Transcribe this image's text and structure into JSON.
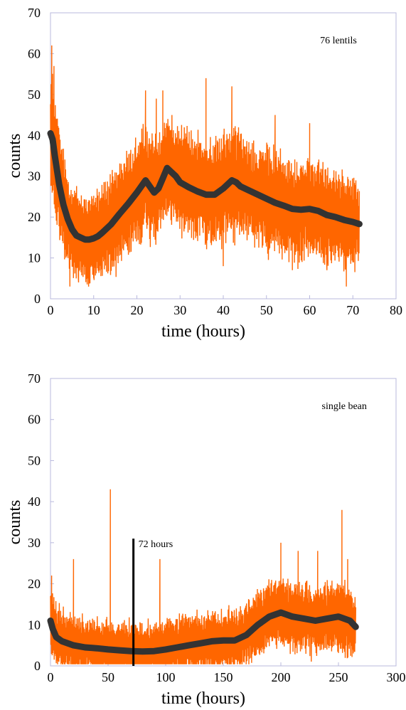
{
  "colors": {
    "raw": "#ff6600",
    "smooth": "#333333",
    "frame": "#b8b8de",
    "marker": "#000000"
  },
  "chart_data": [
    {
      "type": "line",
      "annotation": "76 lentils",
      "xlabel": "time (hours)",
      "ylabel": "counts",
      "xlim": [
        0,
        80
      ],
      "ylim": [
        0,
        70
      ],
      "xticks": [
        0,
        10,
        20,
        30,
        40,
        50,
        60,
        70,
        80
      ],
      "yticks": [
        0,
        10,
        20,
        30,
        40,
        50,
        60,
        70
      ],
      "grid": false,
      "series": [
        {
          "role": "raw",
          "x_range": [
            0,
            71.5
          ],
          "noise_halfwidth": 9,
          "peaks": [
            [
              0.3,
              62
            ],
            [
              0.8,
              57
            ],
            [
              1.5,
              44
            ],
            [
              22,
              51
            ],
            [
              24.5,
              49
            ],
            [
              26,
              51
            ],
            [
              36,
              54
            ],
            [
              42,
              52
            ],
            [
              52,
              45
            ],
            [
              60,
              43
            ]
          ],
          "dips": [
            [
              4.5,
              3
            ],
            [
              6.5,
              4
            ],
            [
              10,
              5
            ],
            [
              40,
              8
            ],
            [
              56,
              7
            ],
            [
              64,
              7
            ],
            [
              68.5,
              3
            ]
          ]
        },
        {
          "role": "smooth",
          "x": [
            0,
            0.5,
            1,
            2,
            3,
            4,
            5,
            6,
            7,
            8,
            9,
            10,
            11,
            12,
            14,
            16,
            18,
            20,
            21,
            22,
            23,
            24,
            25,
            26,
            27,
            28,
            29,
            30,
            32,
            34,
            36,
            38,
            40,
            41,
            42,
            43,
            44,
            46,
            48,
            50,
            52,
            54,
            56,
            58,
            60,
            62,
            64,
            66,
            68,
            70,
            71.5
          ],
          "y": [
            40.5,
            39,
            35,
            28,
            23,
            19.5,
            17,
            15.5,
            15,
            14.5,
            14.5,
            14.8,
            15.3,
            16.2,
            18.2,
            20.8,
            23.3,
            26,
            27.5,
            29,
            27.5,
            26,
            27,
            29.5,
            32,
            31,
            30,
            28.5,
            27.3,
            26.3,
            25.5,
            25.5,
            27,
            28,
            29,
            28.5,
            27.5,
            26.5,
            25.5,
            24.5,
            23.5,
            22.8,
            22,
            21.8,
            22,
            21.5,
            20.5,
            20,
            19.3,
            18.8,
            18.3
          ]
        }
      ]
    },
    {
      "type": "line",
      "annotation": "single bean",
      "marker_label": "72 hours",
      "marker_x": 72,
      "marker_top": 31,
      "xlabel": "time (hours)",
      "ylabel": "counts",
      "xlim": [
        0,
        300
      ],
      "ylim": [
        0,
        70
      ],
      "xticks": [
        0,
        50,
        100,
        150,
        200,
        250,
        300
      ],
      "yticks": [
        0,
        10,
        20,
        30,
        40,
        50,
        60,
        70
      ],
      "grid": false,
      "series": [
        {
          "role": "raw",
          "x_range": [
            0,
            265
          ],
          "noise_halfwidth": 7,
          "peaks": [
            [
              1,
              22
            ],
            [
              20,
              26
            ],
            [
              52,
              43
            ],
            [
              95,
              26
            ],
            [
              200,
              30
            ],
            [
              215,
              28
            ],
            [
              232,
              28
            ],
            [
              253,
              38
            ],
            [
              258,
              26
            ]
          ],
          "dips": []
        },
        {
          "role": "smooth",
          "x": [
            0,
            2,
            5,
            10,
            20,
            30,
            40,
            50,
            60,
            70,
            80,
            90,
            100,
            110,
            120,
            130,
            140,
            150,
            160,
            170,
            180,
            190,
            200,
            210,
            220,
            230,
            240,
            250,
            260,
            265
          ],
          "y": [
            11,
            9,
            7,
            6,
            5,
            4.5,
            4.3,
            4,
            3.8,
            3.6,
            3.5,
            3.6,
            4,
            4.5,
            5,
            5.5,
            6,
            6.2,
            6.2,
            7.5,
            10,
            12,
            13,
            12,
            11.5,
            11,
            11.5,
            12,
            11,
            9.5
          ]
        }
      ]
    }
  ]
}
